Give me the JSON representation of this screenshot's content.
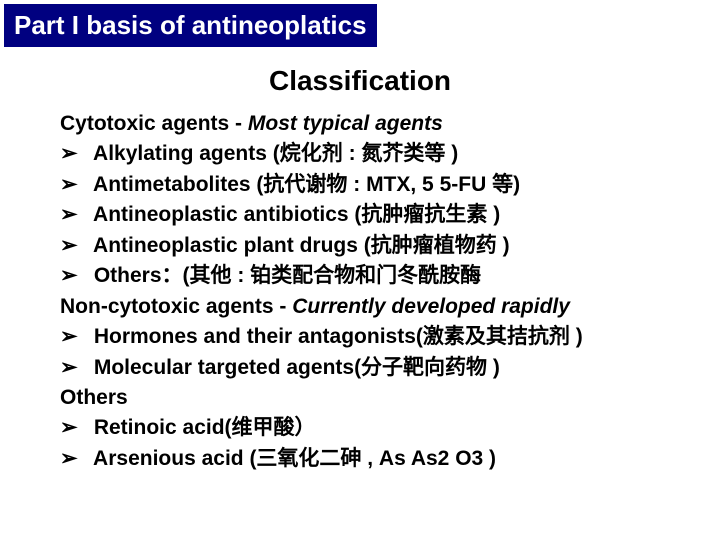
{
  "header": {
    "title": "Part I basis of antineoplatics"
  },
  "title": "Classification",
  "sections": [
    {
      "heading_plain": "Cytotoxic agents - ",
      "heading_italic": "Most typical agents",
      "bullets": [
        "Alkylating agents (烷化剂 : 氮芥类等 )",
        "Antimetabolites (抗代谢物 : MTX, 5 5-FU 等)",
        "Antineoplastic antibiotics (抗肿瘤抗生素 )",
        "Antineoplastic plant drugs (抗肿瘤植物药 )",
        "Others：(其他 : 铂类配合物和门冬酰胺酶"
      ]
    },
    {
      "heading_plain": "Non-cytotoxic agents - ",
      "heading_italic": "Currently developed rapidly",
      "bullets": [
        "Hormones and their antagonists(激素及其拮抗剂 )",
        "Molecular targeted agents(分子靶向药物 )"
      ]
    },
    {
      "heading_plain": "Others",
      "heading_italic": "",
      "bullets": [
        "Retinoic acid(维甲酸）",
        "Arsenious acid (三氧化二砷 , As As2 O3 )"
      ]
    }
  ],
  "bullet_glyph": "➢",
  "colors": {
    "header_bg": "#000080",
    "header_fg": "#ffffff",
    "text": "#000000",
    "background": "#ffffff"
  },
  "fontsizes": {
    "header": 26,
    "title": 28,
    "body": 21
  }
}
